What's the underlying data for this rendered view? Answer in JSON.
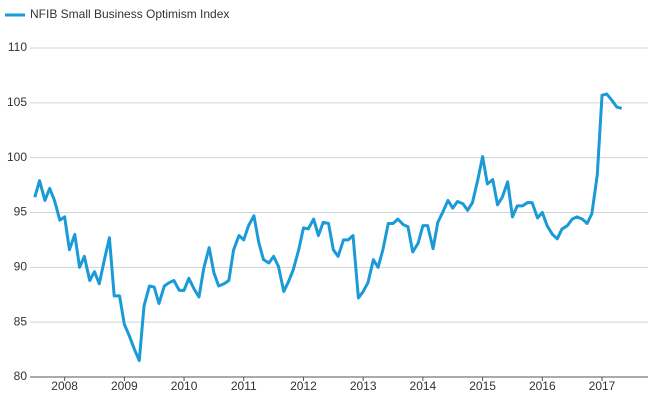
{
  "chart_data": {
    "type": "line",
    "series": [
      {
        "name": "NFIB Small Business Optimism Index",
        "color": "#1a9bd7",
        "values": [
          96.4,
          97.9,
          96.1,
          97.2,
          96.1,
          94.3,
          94.6,
          91.6,
          93.0,
          90.0,
          91.0,
          88.8,
          89.6,
          88.5,
          90.8,
          92.7,
          87.4,
          87.4,
          84.8,
          83.8,
          82.5,
          81.5,
          86.5,
          88.3,
          88.2,
          86.7,
          88.3,
          88.6,
          88.8,
          87.9,
          87.9,
          89.0,
          88.0,
          87.3,
          89.9,
          91.8,
          89.5,
          88.3,
          88.5,
          88.8,
          91.6,
          92.9,
          92.5,
          93.8,
          94.7,
          92.3,
          90.7,
          90.4,
          91.0,
          90.1,
          87.8,
          88.7,
          89.8,
          91.6,
          93.6,
          93.5,
          94.4,
          92.9,
          94.1,
          94.0,
          91.6,
          91.0,
          92.5,
          92.5,
          92.9,
          87.2,
          87.8,
          88.6,
          90.7,
          90.0,
          91.6,
          94.0,
          94.0,
          94.4,
          93.9,
          93.7,
          91.4,
          92.2,
          93.8,
          93.8,
          91.7,
          94.1,
          95.0,
          96.1,
          95.4,
          96.0,
          95.8,
          95.2,
          95.9,
          98.0,
          100.1,
          97.6,
          98.0,
          95.7,
          96.4,
          97.8,
          94.6,
          95.6,
          95.6,
          95.9,
          95.9,
          94.5,
          95.0,
          93.8,
          93.0,
          92.6,
          93.5,
          93.8,
          94.4,
          94.6,
          94.4,
          94.0,
          94.9,
          98.4,
          105.7,
          105.8,
          105.2,
          104.6,
          104.5
        ]
      }
    ],
    "x": [
      2007.5,
      2007.58,
      2007.67,
      2007.75,
      2007.83,
      2007.92,
      2008.0,
      2008.08,
      2008.17,
      2008.25,
      2008.33,
      2008.42,
      2008.5,
      2008.58,
      2008.67,
      2008.75,
      2008.83,
      2008.92,
      2009.0,
      2009.08,
      2009.17,
      2009.25,
      2009.33,
      2009.42,
      2009.5,
      2009.58,
      2009.67,
      2009.75,
      2009.83,
      2009.92,
      2010.0,
      2010.08,
      2010.17,
      2010.25,
      2010.33,
      2010.42,
      2010.5,
      2010.58,
      2010.67,
      2010.75,
      2010.83,
      2010.92,
      2011.0,
      2011.08,
      2011.17,
      2011.25,
      2011.33,
      2011.42,
      2011.5,
      2011.58,
      2011.67,
      2011.75,
      2011.83,
      2011.92,
      2012.0,
      2012.08,
      2012.17,
      2012.25,
      2012.33,
      2012.42,
      2012.5,
      2012.58,
      2012.67,
      2012.75,
      2012.83,
      2012.92,
      2013.0,
      2013.08,
      2013.17,
      2013.25,
      2013.33,
      2013.42,
      2013.5,
      2013.58,
      2013.67,
      2013.75,
      2013.83,
      2013.92,
      2014.0,
      2014.08,
      2014.17,
      2014.25,
      2014.33,
      2014.42,
      2014.5,
      2014.58,
      2014.67,
      2014.75,
      2014.83,
      2014.92,
      2015.0,
      2015.08,
      2015.17,
      2015.25,
      2015.33,
      2015.42,
      2015.5,
      2015.58,
      2015.67,
      2015.75,
      2015.83,
      2015.92,
      2016.0,
      2016.08,
      2016.17,
      2016.25,
      2016.33,
      2016.42,
      2016.5,
      2016.58,
      2016.67,
      2016.75,
      2016.83,
      2016.92,
      2017.0,
      2017.08,
      2017.17,
      2017.25,
      2017.33
    ],
    "xlim": [
      2007.42,
      2017.77
    ],
    "xticks": [
      2008,
      2009,
      2010,
      2011,
      2012,
      2013,
      2014,
      2015,
      2016,
      2017
    ],
    "ylim": [
      80,
      110
    ],
    "yticks": [
      80,
      85,
      90,
      95,
      100,
      105,
      110
    ],
    "grid": true,
    "legend": "top-left"
  }
}
